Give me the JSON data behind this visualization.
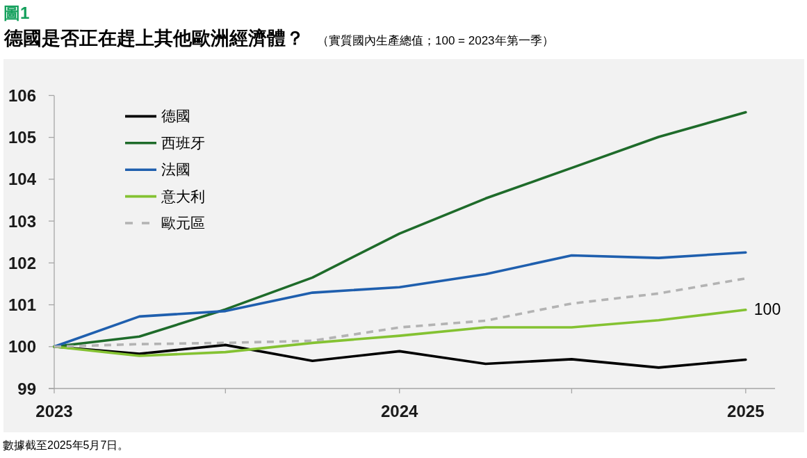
{
  "chart_data": {
    "type": "line",
    "title": "德國是否正在趕上其他歐洲經濟體？",
    "subtitle": "（實質國內生產總值；100 = 2023年第一季）",
    "annotations": [
      "圖1",
      {
        "text": "100",
        "x": "2025-01",
        "y": 100.9
      },
      "數據截至2025年5月7日。"
    ],
    "x": [
      "2023-01",
      "2023-04",
      "2023-07",
      "2023-10",
      "2024-01",
      "2024-04",
      "2024-07",
      "2024-10",
      "2025-01"
    ],
    "series": [
      {
        "name": "德國",
        "color": "#000000",
        "values": [
          100,
          99.83,
          100.04,
          99.66,
          99.89,
          99.59,
          99.7,
          99.5,
          99.69
        ]
      },
      {
        "name": "西班牙",
        "color": "#1e6b2a",
        "values": [
          100,
          100.24,
          100.89,
          101.65,
          102.7,
          103.54,
          104.27,
          105.01,
          105.6
        ]
      },
      {
        "name": "法國",
        "color": "#1f5fae",
        "values": [
          100,
          100.72,
          100.85,
          101.29,
          101.42,
          101.73,
          102.18,
          102.12,
          102.25
        ]
      },
      {
        "name": "意大利",
        "color": "#84c232",
        "values": [
          100,
          99.78,
          99.87,
          100.09,
          100.26,
          100.46,
          100.46,
          100.63,
          100.88
        ]
      },
      {
        "name": "歐元區",
        "color": "#b3b3b3",
        "line_style": "dashed",
        "values": [
          100,
          100.06,
          100.09,
          100.14,
          100.46,
          100.62,
          101.03,
          101.27,
          101.63
        ]
      }
    ],
    "xlim": [
      "2023-01",
      "2025-02"
    ],
    "xticks": [
      "2023",
      {
        "value": "2023-07",
        "label": null
      },
      "2024",
      {
        "value": "2024-07",
        "label": null
      },
      "2025"
    ],
    "ylim": [
      99,
      106
    ],
    "yticks": [
      99,
      100,
      101,
      102,
      103,
      104,
      105,
      106
    ],
    "legend": "top left"
  }
}
